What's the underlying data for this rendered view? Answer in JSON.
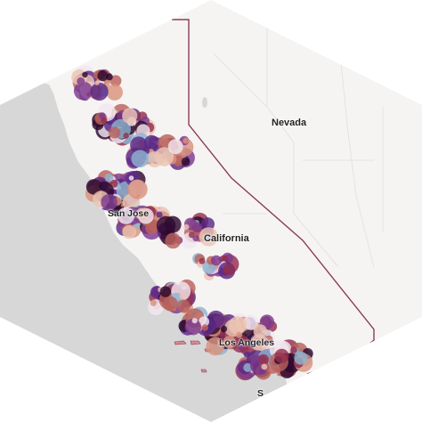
{
  "labels": {
    "nevada": "Nevada",
    "california": "California",
    "san_jose": "San Jose",
    "los_angeles": "Los Angeles",
    "san_diego_partial": "S"
  },
  "colors": {
    "ocean": "#d7d7d7",
    "land": "#f6f4f2",
    "state_border": "#8a3c5c",
    "markers": [
      "#2d0a2e",
      "#5a2a86",
      "#7d3a8e",
      "#93304e",
      "#b9615c",
      "#d9937c",
      "#ecc5b3",
      "#8fb3d0",
      "#f2e6f0"
    ]
  }
}
